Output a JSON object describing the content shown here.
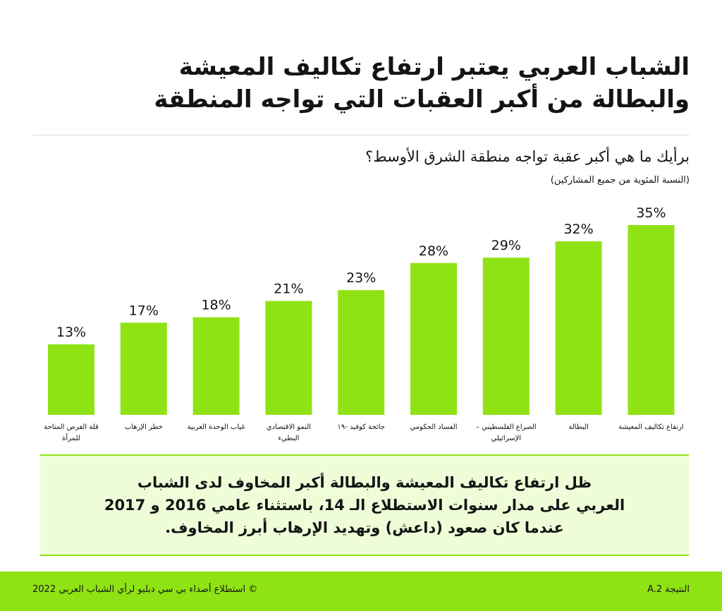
{
  "header": {
    "title_lines": [
      "الشباب العربي يعتبر ارتفاع تكاليف المعيشة",
      "والبطالة من أكبر العقبات التي تواجه المنطقة"
    ],
    "question": "برأيك ما هي أكبر عقبة تواجه منطقة الشرق الأوسط؟",
    "subquestion": "(النسبة المئوية من جميع المشاركين)"
  },
  "chart_data": {
    "type": "bar",
    "categories": [
      "قلة الفرص المتاحة للمرأة",
      "خطر الإرهاب",
      "غياب الوحدة العربية",
      "النمو الاقتصادي البطيء",
      "جائحة كوفيد -١٩",
      "الفساد الحكومي",
      "الصراع الفلسطيني – الإسرائيلي",
      "البطالة",
      "ارتفاع تكاليف المعيشة"
    ],
    "category_lines": [
      [
        "قلة الفرص المتاحة",
        "للمرأة"
      ],
      [
        "خطر الإرهاب"
      ],
      [
        "غياب الوحدة العربية"
      ],
      [
        "النمو الاقتصادي",
        "البطيء"
      ],
      [
        "جائحة كوفيد -١٩"
      ],
      [
        "الفساد الحكومي"
      ],
      [
        "الصراع الفلسطيني –",
        "الإسرائيلي"
      ],
      [
        "البطالة"
      ],
      [
        "ارتفاع تكاليف المعيشة"
      ]
    ],
    "values": [
      13,
      17,
      18,
      21,
      23,
      28,
      29,
      32,
      35
    ],
    "value_labels": [
      "13%",
      "17%",
      "18%",
      "21%",
      "23%",
      "28%",
      "29%",
      "32%",
      "35%"
    ],
    "ylim": [
      0,
      35
    ],
    "grid": false,
    "bar_color": "#8fe315"
  },
  "highlight": {
    "lines": [
      "ظل ارتفاع تكاليف المعيشة والبطالة أكبر المخاوف لدى الشباب",
      "العربي على مدار سنوات الاستطلاع الـ 14، باستثناء عامي 2016 و 2017",
      "عندما كان صعود (داعش) وتهديد الإرهاب أبرز المخاوف."
    ],
    "bg_color": "#eefcd8"
  },
  "footer": {
    "left_text": "© استطلاع أصداء بي سي دبليو لرأي الشباب العربي 2022",
    "right_text": "النتيجة A.2",
    "bg_color": "#8fe315"
  }
}
